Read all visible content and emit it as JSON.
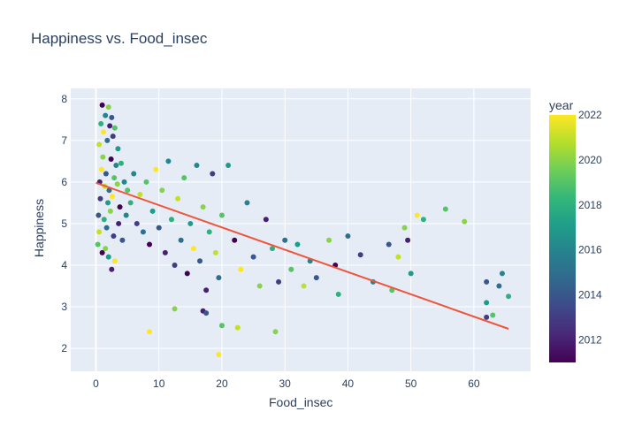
{
  "chart_data": {
    "type": "scatter",
    "title": "Happiness vs. Food_insec",
    "xlabel": "Food_insec",
    "ylabel": "Happiness",
    "xlim": [
      -4,
      69
    ],
    "ylim": [
      1.45,
      8.25
    ],
    "x_ticks": [
      0,
      10,
      20,
      30,
      40,
      50,
      60
    ],
    "y_ticks": [
      2,
      3,
      4,
      5,
      6,
      7,
      8
    ],
    "grid": true,
    "colorbar": {
      "title": "year",
      "min": 2011,
      "max": 2022,
      "ticks": [
        2012,
        2014,
        2016,
        2018,
        2020,
        2022
      ],
      "colorscale": [
        "#440154",
        "#482878",
        "#3e4989",
        "#31688e",
        "#26828e",
        "#1f9e89",
        "#35b779",
        "#6ece58",
        "#b5de2b",
        "#fde725"
      ]
    },
    "trendline": {
      "color": "#ef553b",
      "points": [
        [
          0,
          5.98
        ],
        [
          65.5,
          2.47
        ]
      ]
    },
    "points": [
      [
        1.0,
        7.85,
        2011
      ],
      [
        1.5,
        7.6,
        2016
      ],
      [
        2.0,
        7.8,
        2020
      ],
      [
        2.5,
        7.55,
        2014
      ],
      [
        0.8,
        7.4,
        2018
      ],
      [
        1.2,
        7.2,
        2022
      ],
      [
        2.2,
        7.35,
        2012
      ],
      [
        3.0,
        7.3,
        2019
      ],
      [
        1.8,
        7.0,
        2015
      ],
      [
        0.5,
        6.9,
        2021
      ],
      [
        2.7,
        7.1,
        2013
      ],
      [
        3.5,
        6.8,
        2017
      ],
      [
        1.1,
        6.6,
        2020
      ],
      [
        2.4,
        6.55,
        2011
      ],
      [
        3.2,
        6.4,
        2016
      ],
      [
        0.9,
        6.3,
        2022
      ],
      [
        1.6,
        6.2,
        2014
      ],
      [
        2.9,
        6.1,
        2019
      ],
      [
        4.0,
        6.45,
        2018
      ],
      [
        0.6,
        6.0,
        2012
      ],
      [
        1.4,
        5.9,
        2021
      ],
      [
        2.1,
        5.8,
        2015
      ],
      [
        3.4,
        5.95,
        2020
      ],
      [
        4.5,
        6.0,
        2016
      ],
      [
        0.7,
        5.6,
        2013
      ],
      [
        1.9,
        5.5,
        2017
      ],
      [
        2.6,
        5.65,
        2022
      ],
      [
        3.8,
        5.4,
        2011
      ],
      [
        5.0,
        5.8,
        2019
      ],
      [
        0.4,
        5.2,
        2014
      ],
      [
        1.3,
        5.1,
        2018
      ],
      [
        2.3,
        5.3,
        2020
      ],
      [
        3.6,
        5.0,
        2012
      ],
      [
        4.8,
        5.2,
        2016
      ],
      [
        0.5,
        4.8,
        2021
      ],
      [
        1.7,
        4.9,
        2015
      ],
      [
        2.8,
        4.7,
        2013
      ],
      [
        0.3,
        4.5,
        2019
      ],
      [
        1.0,
        4.3,
        2011
      ],
      [
        2.0,
        4.2,
        2017
      ],
      [
        3.0,
        4.1,
        2022
      ],
      [
        2.5,
        3.9,
        2012
      ],
      [
        1.5,
        4.4,
        2020
      ],
      [
        4.2,
        4.6,
        2014
      ],
      [
        5.5,
        5.5,
        2018
      ],
      [
        6.0,
        6.2,
        2016
      ],
      [
        6.5,
        5.0,
        2013
      ],
      [
        7.0,
        5.7,
        2021
      ],
      [
        7.5,
        4.8,
        2015
      ],
      [
        8.0,
        6.0,
        2019
      ],
      [
        8.5,
        4.5,
        2011
      ],
      [
        9.0,
        5.3,
        2017
      ],
      [
        9.5,
        6.3,
        2022
      ],
      [
        10.0,
        4.9,
        2014
      ],
      [
        10.5,
        5.8,
        2020
      ],
      [
        11.0,
        4.3,
        2012
      ],
      [
        11.5,
        6.5,
        2016
      ],
      [
        12.0,
        5.1,
        2018
      ],
      [
        12.5,
        4.0,
        2013
      ],
      [
        13.0,
        5.6,
        2021
      ],
      [
        13.5,
        4.6,
        2015
      ],
      [
        14.0,
        6.1,
        2019
      ],
      [
        14.5,
        3.8,
        2011
      ],
      [
        15.0,
        5.0,
        2017
      ],
      [
        15.5,
        4.4,
        2022
      ],
      [
        16.0,
        6.4,
        2016
      ],
      [
        16.5,
        4.1,
        2014
      ],
      [
        17.0,
        5.4,
        2020
      ],
      [
        17.5,
        3.4,
        2012
      ],
      [
        18.0,
        4.8,
        2018
      ],
      [
        18.5,
        6.2,
        2013
      ],
      [
        19.0,
        4.3,
        2021
      ],
      [
        19.5,
        3.7,
        2015
      ],
      [
        20.0,
        5.2,
        2019
      ],
      [
        21.0,
        6.4,
        2017
      ],
      [
        22.0,
        4.6,
        2011
      ],
      [
        23.0,
        3.9,
        2022
      ],
      [
        24.0,
        5.5,
        2016
      ],
      [
        25.0,
        4.2,
        2014
      ],
      [
        26.0,
        3.5,
        2020
      ],
      [
        27.0,
        5.1,
        2012
      ],
      [
        28.0,
        4.4,
        2018
      ],
      [
        29.0,
        3.6,
        2013
      ],
      [
        30.0,
        4.6,
        2015
      ],
      [
        31.0,
        3.9,
        2019
      ],
      [
        32.0,
        4.5,
        2017
      ],
      [
        33.0,
        3.5,
        2021
      ],
      [
        34.0,
        4.1,
        2016
      ],
      [
        35.0,
        3.7,
        2014
      ],
      [
        37.0,
        4.6,
        2020
      ],
      [
        38.0,
        4.0,
        2011
      ],
      [
        38.5,
        3.3,
        2018
      ],
      [
        40.0,
        4.7,
        2015
      ],
      [
        42.0,
        4.25,
        2013
      ],
      [
        44.0,
        3.6,
        2016
      ],
      [
        46.5,
        4.5,
        2014
      ],
      [
        47.0,
        3.4,
        2019
      ],
      [
        48.0,
        4.2,
        2021
      ],
      [
        49.0,
        4.9,
        2020
      ],
      [
        49.5,
        4.6,
        2012
      ],
      [
        50.0,
        3.8,
        2017
      ],
      [
        51.0,
        5.2,
        2022
      ],
      [
        52.0,
        5.1,
        2018
      ],
      [
        55.5,
        5.35,
        2019
      ],
      [
        58.5,
        5.05,
        2020
      ],
      [
        62.0,
        3.6,
        2014
      ],
      [
        62.0,
        2.75,
        2013
      ],
      [
        63.0,
        2.8,
        2019
      ],
      [
        64.0,
        3.5,
        2015
      ],
      [
        64.5,
        3.8,
        2016
      ],
      [
        65.5,
        3.25,
        2018
      ],
      [
        62.0,
        3.1,
        2017
      ],
      [
        20.0,
        2.55,
        2019
      ],
      [
        22.5,
        2.5,
        2021
      ],
      [
        28.5,
        2.4,
        2020
      ],
      [
        8.5,
        2.4,
        2022
      ],
      [
        19.5,
        1.85,
        2022
      ],
      [
        17.0,
        2.9,
        2012
      ],
      [
        12.5,
        2.95,
        2020
      ],
      [
        17.5,
        2.85,
        2014
      ]
    ]
  }
}
